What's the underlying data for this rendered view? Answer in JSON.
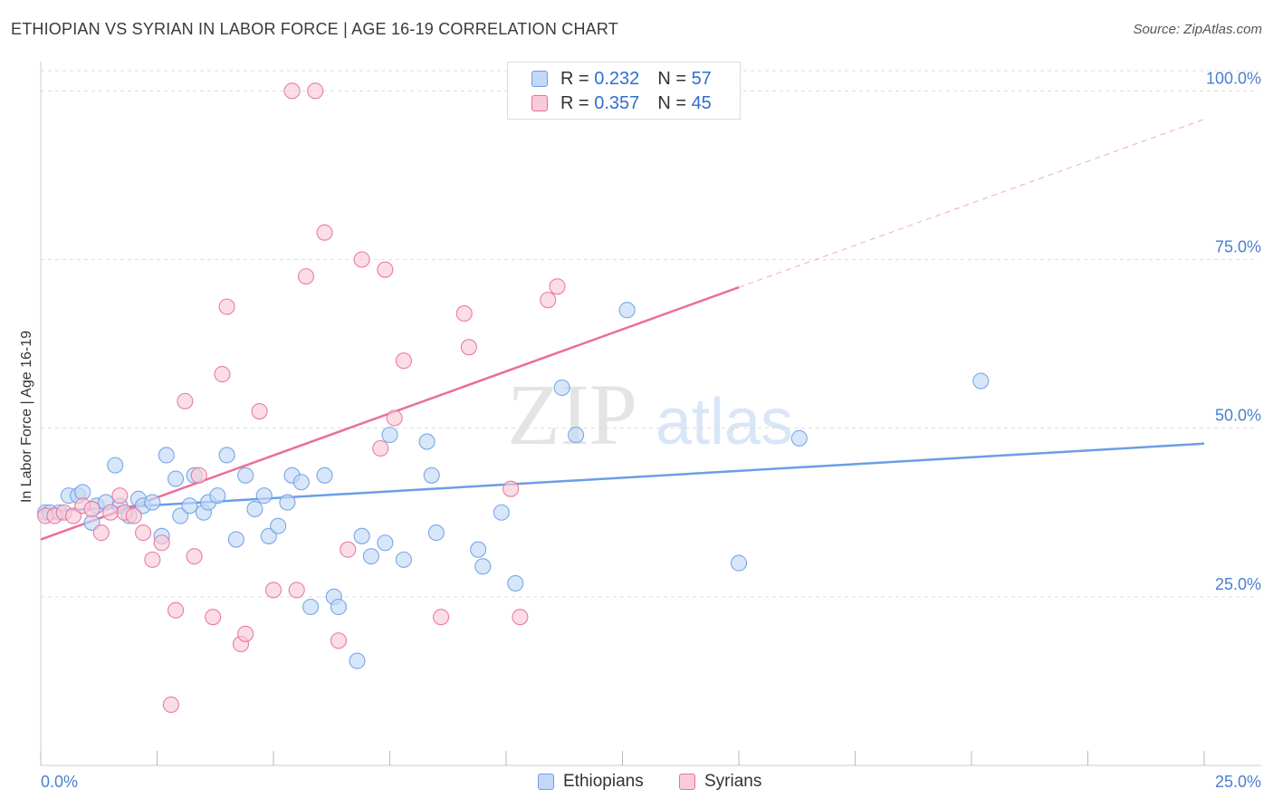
{
  "header": {
    "title": "ETHIOPIAN VS SYRIAN IN LABOR FORCE | AGE 16-19 CORRELATION CHART",
    "source": "Source: ZipAtlas.com"
  },
  "watermark": {
    "zip": "ZIP",
    "atlas": "atlas"
  },
  "legend": {
    "r_label": "R =",
    "n_label": "N =",
    "rows": [
      {
        "r": "0.232",
        "n": "57",
        "color": "#a9c7f0"
      },
      {
        "r": "0.357",
        "n": "45",
        "color": "#f6b8ca"
      }
    ]
  },
  "bottom_legend": {
    "ethiopians": "Ethiopians",
    "syrians": "Syrians"
  },
  "chart_data": {
    "type": "scatter",
    "xlabel": "",
    "ylabel": "In Labor Force | Age 16-19",
    "xlim": [
      0,
      25
    ],
    "ylim": [
      0,
      103
    ],
    "x_tick_labels": [
      "0.0%",
      "25.0%"
    ],
    "y_ticks": [
      25,
      50,
      75,
      100
    ],
    "y_tick_labels": [
      "25.0%",
      "50.0%",
      "75.0%",
      "100.0%"
    ],
    "grid": true,
    "series": [
      {
        "name": "Ethiopians",
        "color": "#6b9ee6",
        "fill": "#c3d8f6",
        "trend": {
          "x": [
            0,
            25
          ],
          "y": [
            37.6,
            47.7
          ],
          "dashed_from": null
        },
        "points": [
          [
            0.1,
            37.5
          ],
          [
            0.2,
            37.5
          ],
          [
            0.4,
            37.5
          ],
          [
            0.6,
            40.0
          ],
          [
            0.8,
            40.0
          ],
          [
            0.9,
            40.5
          ],
          [
            1.1,
            36.0
          ],
          [
            1.2,
            38.5
          ],
          [
            1.4,
            39.0
          ],
          [
            1.6,
            44.5
          ],
          [
            1.7,
            38.5
          ],
          [
            1.9,
            37.0
          ],
          [
            2.1,
            39.5
          ],
          [
            2.2,
            38.5
          ],
          [
            2.4,
            39.0
          ],
          [
            2.6,
            34.0
          ],
          [
            2.7,
            46.0
          ],
          [
            2.9,
            42.5
          ],
          [
            3.0,
            37.0
          ],
          [
            3.2,
            38.5
          ],
          [
            3.3,
            43.0
          ],
          [
            3.5,
            37.5
          ],
          [
            3.6,
            39.0
          ],
          [
            3.8,
            40.0
          ],
          [
            4.0,
            46.0
          ],
          [
            4.2,
            33.5
          ],
          [
            4.4,
            43.0
          ],
          [
            4.6,
            38.0
          ],
          [
            4.8,
            40.0
          ],
          [
            4.9,
            34.0
          ],
          [
            5.1,
            35.5
          ],
          [
            5.3,
            39.0
          ],
          [
            5.4,
            43.0
          ],
          [
            5.6,
            42.0
          ],
          [
            5.8,
            23.5
          ],
          [
            6.1,
            43.0
          ],
          [
            6.3,
            25.0
          ],
          [
            6.4,
            23.5
          ],
          [
            6.8,
            15.5
          ],
          [
            6.9,
            34.0
          ],
          [
            7.1,
            31.0
          ],
          [
            7.4,
            33.0
          ],
          [
            7.5,
            49.0
          ],
          [
            7.8,
            30.5
          ],
          [
            8.3,
            48.0
          ],
          [
            8.4,
            43.0
          ],
          [
            8.5,
            34.5
          ],
          [
            9.4,
            32.0
          ],
          [
            9.5,
            29.5
          ],
          [
            9.9,
            37.5
          ],
          [
            10.2,
            27.0
          ],
          [
            11.2,
            56.0
          ],
          [
            11.5,
            49.0
          ],
          [
            12.6,
            67.5
          ],
          [
            15.0,
            30.0
          ],
          [
            16.3,
            48.5
          ],
          [
            20.2,
            57.0
          ]
        ]
      },
      {
        "name": "Syrians",
        "color": "#e96f98",
        "fill": "#f9cbd9",
        "trend": {
          "x": [
            0,
            25
          ],
          "y": [
            33.5,
            95.8
          ],
          "dashed_from": 15.0
        },
        "points": [
          [
            0.1,
            37.0
          ],
          [
            0.3,
            37.0
          ],
          [
            0.5,
            37.5
          ],
          [
            0.7,
            37.0
          ],
          [
            0.9,
            38.5
          ],
          [
            1.1,
            38.0
          ],
          [
            1.3,
            34.5
          ],
          [
            1.5,
            37.5
          ],
          [
            1.7,
            40.0
          ],
          [
            1.8,
            37.5
          ],
          [
            2.0,
            37.0
          ],
          [
            2.2,
            34.5
          ],
          [
            2.4,
            30.5
          ],
          [
            2.6,
            33.0
          ],
          [
            2.9,
            23.0
          ],
          [
            3.1,
            54.0
          ],
          [
            3.3,
            31.0
          ],
          [
            3.4,
            43.0
          ],
          [
            3.7,
            22.0
          ],
          [
            3.9,
            58.0
          ],
          [
            4.0,
            68.0
          ],
          [
            4.3,
            18.0
          ],
          [
            4.4,
            19.5
          ],
          [
            4.7,
            52.5
          ],
          [
            5.0,
            26.0
          ],
          [
            5.4,
            100.0
          ],
          [
            5.5,
            26.0
          ],
          [
            5.7,
            72.5
          ],
          [
            5.9,
            100.0
          ],
          [
            6.1,
            79.0
          ],
          [
            6.4,
            18.5
          ],
          [
            6.6,
            32.0
          ],
          [
            6.9,
            75.0
          ],
          [
            7.3,
            47.0
          ],
          [
            7.4,
            73.5
          ],
          [
            7.6,
            51.5
          ],
          [
            7.8,
            60.0
          ],
          [
            8.6,
            22.0
          ],
          [
            9.1,
            67.0
          ],
          [
            9.2,
            62.0
          ],
          [
            10.1,
            41.0
          ],
          [
            10.3,
            22.0
          ],
          [
            10.9,
            69.0
          ],
          [
            11.1,
            71.0
          ],
          [
            2.8,
            9.0
          ]
        ]
      }
    ]
  }
}
